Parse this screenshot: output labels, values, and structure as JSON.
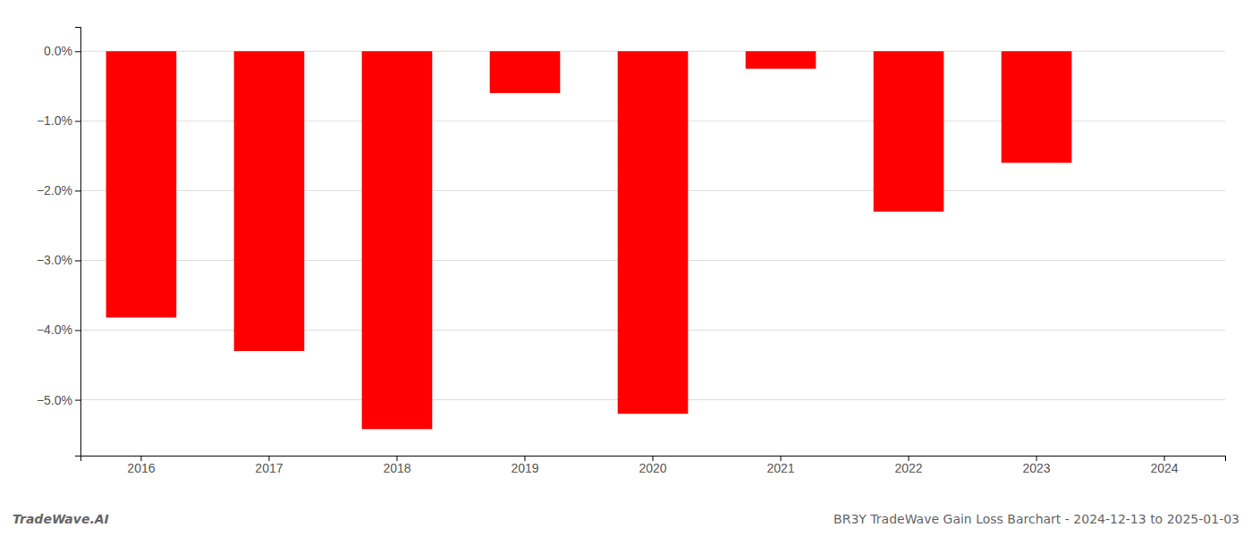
{
  "chart_data": {
    "type": "bar",
    "categories": [
      "2016",
      "2017",
      "2018",
      "2019",
      "2020",
      "2021",
      "2022",
      "2023",
      "2024"
    ],
    "values": [
      -3.82,
      -4.3,
      -5.42,
      -0.6,
      -5.2,
      -0.25,
      -2.3,
      -1.6,
      0.0
    ],
    "color": "#FF0000",
    "ylim": [
      -5.8,
      0.35
    ],
    "yticks": [
      {
        "value": 0.0,
        "label": "0.0%"
      },
      {
        "value": -1.0,
        "label": "−1.0%"
      },
      {
        "value": -2.0,
        "label": "−2.0%"
      },
      {
        "value": -3.0,
        "label": "−3.0%"
      },
      {
        "value": -4.0,
        "label": "−4.0%"
      },
      {
        "value": -5.0,
        "label": "−5.0%"
      }
    ],
    "grid": true,
    "annotations": [
      "TradeWave.AI",
      "BR3Y TradeWave Gain Loss Barchart - 2024-12-13 to 2025-01-03"
    ]
  }
}
